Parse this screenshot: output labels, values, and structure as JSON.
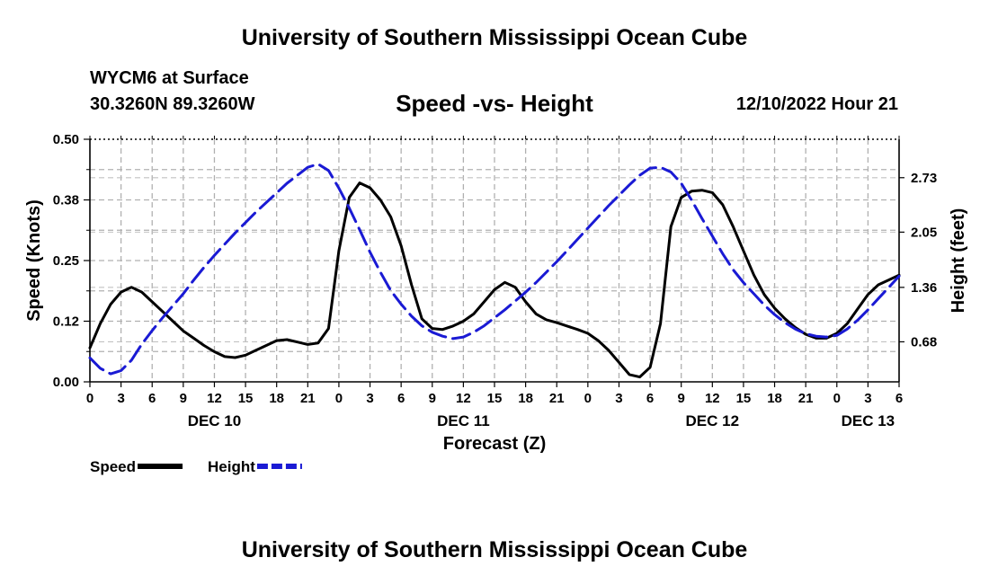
{
  "page": {
    "title_top": "University of Southern Mississippi Ocean Cube",
    "title_bottom": "University of Southern Mississippi Ocean Cube",
    "station": "WYCM6 at Surface",
    "coords": "30.3260N  89.3260W",
    "subtitle": "Speed -vs- Height",
    "datetime": "12/10/2022 Hour 21"
  },
  "chart_data": {
    "type": "line",
    "title": "Speed -vs- Height",
    "xlabel": "Forecast (Z)",
    "ylabel_left": "Speed (Knots)",
    "ylabel_right": "Height (feet)",
    "x_hours_range": [
      0,
      78
    ],
    "x_tick_labels": [
      "0",
      "3",
      "6",
      "9",
      "12",
      "15",
      "18",
      "21",
      "0",
      "3",
      "6",
      "9",
      "12",
      "15",
      "18",
      "21",
      "0",
      "3",
      "6",
      "9",
      "12",
      "15",
      "18",
      "21",
      "0",
      "3",
      "6"
    ],
    "day_labels": [
      {
        "label": "DEC 10",
        "hour": 12
      },
      {
        "label": "DEC 11",
        "hour": 36
      },
      {
        "label": "DEC 12",
        "hour": 60
      },
      {
        "label": "DEC 13",
        "hour": 75
      }
    ],
    "ylim_left": [
      0,
      0.5
    ],
    "yticks_left": [
      {
        "v": 0,
        "label": "0.00"
      },
      {
        "v": 0.125,
        "label": "0.12"
      },
      {
        "v": 0.25,
        "label": "0.25"
      },
      {
        "v": 0.375,
        "label": "0.38"
      },
      {
        "v": 0.5,
        "label": "0.50"
      }
    ],
    "ylim_right": [
      0.18,
      3.21
    ],
    "yticks_right": [
      {
        "v": 0.68,
        "label": "0.68"
      },
      {
        "v": 1.36,
        "label": "1.36"
      },
      {
        "v": 2.05,
        "label": "2.05"
      },
      {
        "v": 2.73,
        "label": "2.73"
      }
    ],
    "grid": true,
    "series": [
      {
        "name": "Speed",
        "axis": "left",
        "color": "#000000",
        "dashed": false,
        "x": [
          0,
          1,
          2,
          3,
          4,
          5,
          6,
          7,
          8,
          9,
          10,
          11,
          12,
          13,
          14,
          15,
          16,
          17,
          18,
          19,
          20,
          21,
          22,
          23,
          24,
          25,
          26,
          27,
          28,
          29,
          30,
          31,
          32,
          33,
          34,
          35,
          36,
          37,
          38,
          39,
          40,
          41,
          42,
          43,
          44,
          45,
          46,
          47,
          48,
          49,
          50,
          51,
          52,
          53,
          54,
          55,
          56,
          57,
          58,
          59,
          60,
          61,
          62,
          63,
          64,
          65,
          66,
          67,
          68,
          69,
          70,
          71,
          72,
          73,
          74,
          75,
          76,
          77,
          78
        ],
        "values": [
          0.07,
          0.12,
          0.16,
          0.185,
          0.195,
          0.185,
          0.165,
          0.145,
          0.125,
          0.105,
          0.09,
          0.075,
          0.062,
          0.052,
          0.05,
          0.055,
          0.065,
          0.075,
          0.085,
          0.087,
          0.082,
          0.077,
          0.08,
          0.11,
          0.27,
          0.38,
          0.41,
          0.4,
          0.375,
          0.34,
          0.28,
          0.2,
          0.13,
          0.11,
          0.108,
          0.115,
          0.125,
          0.14,
          0.165,
          0.19,
          0.205,
          0.195,
          0.165,
          0.14,
          0.128,
          0.122,
          0.115,
          0.108,
          0.1,
          0.085,
          0.065,
          0.04,
          0.015,
          0.01,
          0.03,
          0.12,
          0.32,
          0.38,
          0.393,
          0.395,
          0.39,
          0.365,
          0.32,
          0.27,
          0.22,
          0.18,
          0.152,
          0.13,
          0.112,
          0.098,
          0.09,
          0.09,
          0.1,
          0.12,
          0.15,
          0.18,
          0.2,
          0.21,
          0.22
        ]
      },
      {
        "name": "Height",
        "axis": "right",
        "color": "#1a1ad4",
        "dashed": true,
        "x": [
          0,
          1,
          2,
          3,
          4,
          5,
          6,
          7,
          8,
          9,
          10,
          11,
          12,
          13,
          14,
          15,
          16,
          17,
          18,
          19,
          20,
          21,
          22,
          23,
          24,
          25,
          26,
          27,
          28,
          29,
          30,
          31,
          32,
          33,
          34,
          35,
          36,
          37,
          38,
          39,
          40,
          41,
          42,
          43,
          44,
          45,
          46,
          47,
          48,
          49,
          50,
          51,
          52,
          53,
          54,
          55,
          56,
          57,
          58,
          59,
          60,
          61,
          62,
          63,
          64,
          65,
          66,
          67,
          68,
          69,
          70,
          71,
          72,
          73,
          74,
          75,
          76,
          77,
          78
        ],
        "values": [
          0.48,
          0.35,
          0.28,
          0.32,
          0.45,
          0.65,
          0.82,
          0.98,
          1.13,
          1.28,
          1.45,
          1.61,
          1.76,
          1.9,
          2.04,
          2.17,
          2.3,
          2.42,
          2.54,
          2.66,
          2.76,
          2.86,
          2.9,
          2.82,
          2.6,
          2.35,
          2.08,
          1.8,
          1.55,
          1.32,
          1.15,
          1.0,
          0.88,
          0.8,
          0.75,
          0.72,
          0.74,
          0.8,
          0.88,
          0.98,
          1.08,
          1.19,
          1.3,
          1.42,
          1.55,
          1.68,
          1.82,
          1.96,
          2.1,
          2.24,
          2.38,
          2.51,
          2.64,
          2.76,
          2.85,
          2.86,
          2.8,
          2.66,
          2.45,
          2.22,
          2.0,
          1.78,
          1.58,
          1.42,
          1.28,
          1.14,
          1.02,
          0.92,
          0.84,
          0.78,
          0.75,
          0.74,
          0.76,
          0.84,
          0.95,
          1.08,
          1.22,
          1.36,
          1.5
        ]
      }
    ],
    "legend": {
      "placement": "bottom-left",
      "entries": [
        {
          "label": "Speed",
          "color": "#000000",
          "dashed": false
        },
        {
          "label": "Height",
          "color": "#1a1ad4",
          "dashed": true
        }
      ]
    }
  }
}
